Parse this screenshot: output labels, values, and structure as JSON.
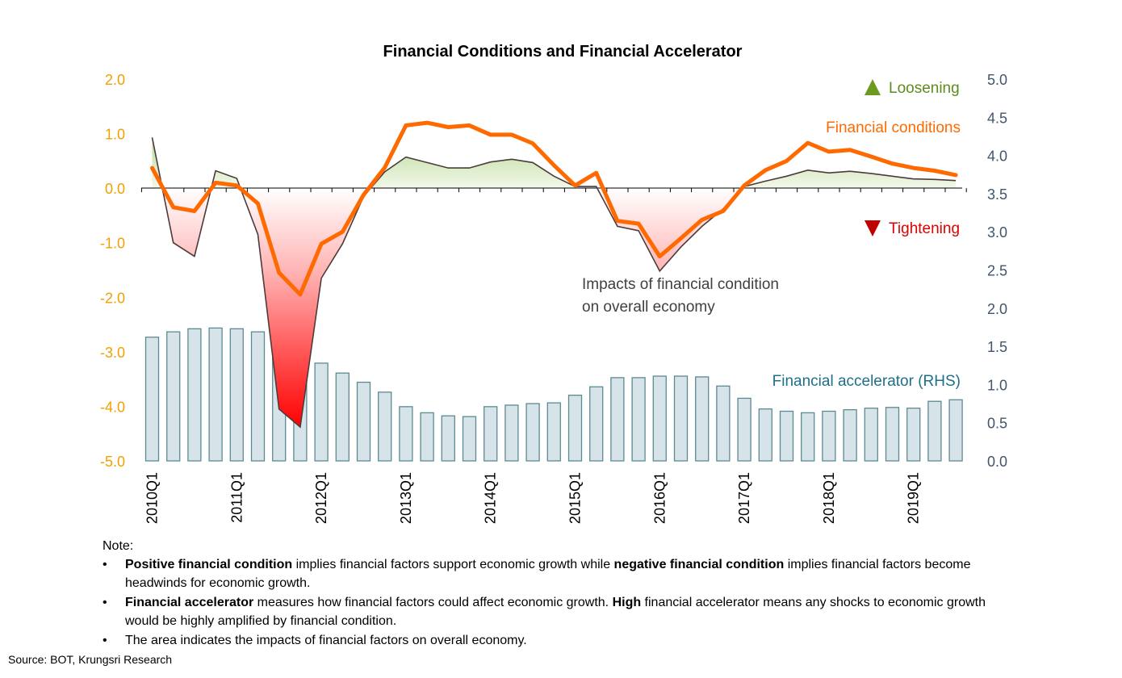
{
  "chart_data": {
    "type": "line+area+bar",
    "title": "Financial Conditions and Financial Accelerator",
    "left_axis": {
      "range": [
        -5.0,
        2.0
      ],
      "ticks": [
        "2.0",
        "1.0",
        "0.0",
        "-1.0",
        "-2.0",
        "-3.0",
        "-4.0",
        "-5.0"
      ],
      "tick_values": [
        2,
        1,
        0,
        -1,
        -2,
        -3,
        -4,
        -5
      ]
    },
    "right_axis": {
      "range": [
        0.0,
        5.0
      ],
      "ticks": [
        "5.0",
        "4.5",
        "4.0",
        "3.5",
        "3.0",
        "2.5",
        "2.0",
        "1.5",
        "1.0",
        "0.5",
        "0.0"
      ],
      "tick_values": [
        5,
        4.5,
        4,
        3.5,
        3,
        2.5,
        2,
        1.5,
        1,
        0.5,
        0
      ]
    },
    "x_tick_labels": [
      "2010Q1",
      "2011Q1",
      "2012Q1",
      "2013Q1",
      "2014Q1",
      "2015Q1",
      "2016Q1",
      "2017Q1",
      "2018Q1",
      "2019Q1"
    ],
    "quarters": [
      "2010Q1",
      "2010Q2",
      "2010Q3",
      "2010Q4",
      "2011Q1",
      "2011Q2",
      "2011Q3",
      "2011Q4",
      "2012Q1",
      "2012Q2",
      "2012Q3",
      "2012Q4",
      "2013Q1",
      "2013Q2",
      "2013Q3",
      "2013Q4",
      "2014Q1",
      "2014Q2",
      "2014Q3",
      "2014Q4",
      "2015Q1",
      "2015Q2",
      "2015Q3",
      "2015Q4",
      "2016Q1",
      "2016Q2",
      "2016Q3",
      "2016Q4",
      "2017Q1",
      "2017Q2",
      "2017Q3",
      "2017Q4",
      "2018Q1",
      "2018Q2",
      "2018Q3",
      "2018Q4",
      "2019Q1",
      "2019Q2",
      "2019Q3"
    ],
    "series": [
      {
        "name": "Financial conditions",
        "axis": "left",
        "color": "#ff6a00",
        "values": [
          0.37,
          -0.35,
          -0.42,
          0.1,
          0.05,
          -0.28,
          -1.55,
          -1.95,
          -1.02,
          -0.8,
          -0.12,
          0.38,
          1.15,
          1.2,
          1.12,
          1.15,
          0.98,
          0.98,
          0.82,
          0.42,
          0.05,
          0.28,
          -0.6,
          -0.65,
          -1.25,
          -0.92,
          -0.58,
          -0.42,
          0.05,
          0.33,
          0.5,
          0.83,
          0.67,
          0.7,
          0.58,
          0.45,
          0.37,
          0.32,
          0.24
        ]
      },
      {
        "name": "Impacts of financial condition on overall economy",
        "axis": "left",
        "color": "#4d3b3b",
        "values": [
          0.93,
          -1.0,
          -1.25,
          0.32,
          0.18,
          -0.85,
          -4.05,
          -4.38,
          -1.65,
          -1.02,
          -0.15,
          0.3,
          0.57,
          0.47,
          0.37,
          0.37,
          0.48,
          0.53,
          0.47,
          0.22,
          0.03,
          0.03,
          -0.7,
          -0.78,
          -1.52,
          -1.08,
          -0.7,
          -0.38,
          0.03,
          0.13,
          0.22,
          0.33,
          0.28,
          0.31,
          0.27,
          0.22,
          0.17,
          0.16,
          0.14
        ]
      },
      {
        "name": "Financial accelerator (RHS)",
        "axis": "right",
        "type": "bar",
        "color": "#d6e4ea",
        "values": [
          1.62,
          1.69,
          1.73,
          1.74,
          1.73,
          1.69,
          1.61,
          1.5,
          1.28,
          1.15,
          1.03,
          0.9,
          0.71,
          0.63,
          0.59,
          0.58,
          0.71,
          0.73,
          0.75,
          0.76,
          0.86,
          0.97,
          1.09,
          1.09,
          1.11,
          1.11,
          1.1,
          0.98,
          0.82,
          0.68,
          0.65,
          0.63,
          0.65,
          0.67,
          0.69,
          0.7,
          0.69,
          0.78,
          0.8
        ]
      }
    ],
    "annotations": {
      "loosening": "Loosening",
      "tightening": "Tightening",
      "fc_label": "Financial conditions",
      "impact_line1": "Impacts of financial condition",
      "impact_line2": "on overall economy",
      "accel_label": "Financial accelerator (RHS)"
    },
    "colors": {
      "left_axis": "#f0a000",
      "right_axis": "#44546a",
      "loosen": "#6a9a1f",
      "tighten": "#c00000",
      "bar_stroke": "#5c8a91",
      "fill_pos": "#c5e0a5",
      "fill_neg": "#ff0000"
    }
  },
  "notes": {
    "heading": "Note:",
    "b1_bold1": "Positive financial condition",
    "b1_t1": " implies financial factors support economic growth while ",
    "b1_bold2": "negative financial condition",
    "b1_t2": " implies financial factors become headwinds for economic growth.",
    "b2_bold1": "Financial accelerator",
    "b2_t1": " measures how financial factors could affect economic growth. ",
    "b2_bold2": "High",
    "b2_t2": " financial accelerator means any shocks to economic growth would be highly amplified by financial condition.",
    "b3": "The area indicates the impacts of financial factors on overall economy."
  },
  "source": "Source: BOT, Krungsri Research"
}
